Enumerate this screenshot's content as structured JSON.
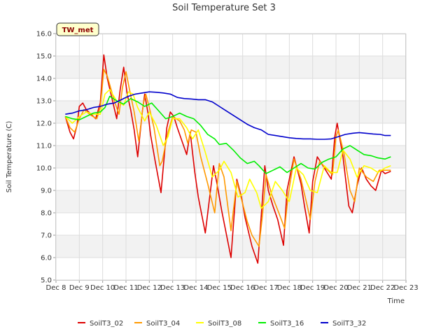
{
  "chart_data": {
    "type": "line",
    "title": "Soil Temperature Set 3",
    "xlabel": "Time",
    "ylabel": "Soil Temperature (C)",
    "badge": "TW_met",
    "xlim": [
      8,
      23
    ],
    "ylim": [
      5.0,
      16.0
    ],
    "x_ticks": [
      "Dec 8",
      "Dec 9",
      "Dec 10",
      "Dec 11",
      "Dec 12",
      "Dec 13",
      "Dec 14",
      "Dec 15",
      "Dec 16",
      "Dec 17",
      "Dec 18",
      "Dec 19",
      "Dec 20",
      "Dec 21",
      "Dec 22",
      "Dec 23"
    ],
    "y_ticks": [
      "5.0",
      "6.0",
      "7.0",
      "8.0",
      "9.0",
      "10.0",
      "11.0",
      "12.0",
      "13.0",
      "14.0",
      "15.0",
      "16.0"
    ],
    "legend_position": "bottom",
    "grid": true,
    "series": [
      {
        "name": "SoilT3_02",
        "color": "#dd0000",
        "x": [
          8.4,
          8.6,
          8.75,
          8.9,
          9.0,
          9.15,
          9.3,
          9.5,
          9.7,
          9.9,
          10.05,
          10.2,
          10.4,
          10.6,
          10.75,
          10.9,
          11.05,
          11.2,
          11.35,
          11.5,
          11.7,
          11.8,
          11.95,
          12.05,
          12.25,
          12.5,
          12.75,
          12.9,
          13.05,
          13.2,
          13.4,
          13.6,
          13.75,
          13.95,
          14.1,
          14.4,
          14.75,
          14.9,
          15.1,
          15.5,
          15.75,
          15.95,
          16.1,
          16.4,
          16.65,
          16.75,
          16.95,
          17.1,
          17.3,
          17.5,
          17.75,
          17.9,
          18.2,
          18.5,
          18.65,
          18.85,
          19.0,
          19.2,
          19.5,
          19.8,
          19.95,
          20.05,
          20.3,
          20.55,
          20.7,
          20.9,
          21.1,
          21.3,
          21.5,
          21.7,
          21.95,
          22.1,
          22.35
        ],
        "values": [
          12.3,
          11.6,
          11.3,
          11.9,
          12.75,
          12.9,
          12.6,
          12.4,
          12.2,
          12.9,
          15.05,
          14.0,
          13.1,
          12.2,
          13.5,
          14.5,
          13.3,
          12.6,
          11.7,
          10.5,
          12.5,
          13.3,
          12.4,
          11.5,
          10.3,
          8.9,
          11.8,
          12.5,
          12.3,
          11.8,
          11.2,
          10.6,
          11.6,
          9.8,
          8.7,
          7.1,
          10.1,
          9.3,
          8.1,
          6.0,
          9.5,
          8.7,
          7.8,
          6.5,
          5.75,
          7.2,
          10.1,
          9.0,
          8.3,
          7.7,
          6.55,
          9.0,
          10.5,
          9.3,
          8.3,
          7.1,
          9.4,
          10.5,
          10.0,
          9.5,
          11.4,
          12.0,
          10.5,
          8.3,
          8.0,
          9.2,
          10.0,
          9.5,
          9.2,
          9.0,
          9.9,
          9.75,
          9.85
        ]
      },
      {
        "name": "SoilT3_04",
        "color": "#ff9900",
        "x": [
          8.4,
          8.6,
          8.8,
          9.0,
          9.2,
          9.5,
          9.75,
          9.9,
          10.05,
          10.2,
          10.5,
          10.7,
          10.85,
          11.0,
          11.15,
          11.35,
          11.55,
          11.75,
          11.85,
          12.0,
          12.2,
          12.45,
          12.55,
          12.8,
          13.0,
          13.3,
          13.5,
          13.65,
          13.8,
          14.0,
          14.2,
          14.5,
          14.8,
          15.0,
          15.2,
          15.5,
          15.75,
          16.0,
          16.2,
          16.4,
          16.7,
          16.85,
          17.0,
          17.25,
          17.55,
          17.8,
          17.95,
          18.2,
          18.5,
          18.75,
          18.9,
          19.1,
          19.3,
          19.55,
          19.85,
          20.0,
          20.1,
          20.35,
          20.6,
          20.8,
          21.0,
          21.3,
          21.6,
          21.85,
          22.1,
          22.35
        ],
        "values": [
          12.3,
          11.8,
          11.6,
          12.2,
          12.6,
          12.35,
          12.2,
          12.7,
          14.4,
          14.1,
          13.0,
          12.4,
          13.6,
          14.3,
          13.5,
          12.5,
          11.2,
          12.9,
          13.3,
          12.7,
          11.8,
          10.1,
          10.3,
          11.6,
          12.3,
          12.1,
          11.7,
          11.1,
          11.7,
          11.6,
          10.5,
          9.3,
          8.0,
          10.2,
          9.6,
          7.2,
          9.4,
          8.4,
          7.6,
          7.0,
          6.5,
          7.9,
          9.7,
          8.8,
          8.0,
          7.3,
          8.8,
          10.4,
          9.5,
          8.4,
          7.7,
          9.4,
          10.3,
          10.0,
          9.7,
          11.4,
          11.7,
          10.6,
          9.0,
          8.5,
          10.0,
          9.6,
          9.4,
          9.9,
          9.9,
          9.9
        ]
      },
      {
        "name": "SoilT3_08",
        "color": "#ffff00",
        "x": [
          8.4,
          8.7,
          9.0,
          9.3,
          9.6,
          9.9,
          10.1,
          10.3,
          10.6,
          10.9,
          11.1,
          11.3,
          11.5,
          11.8,
          12.0,
          12.3,
          12.6,
          12.8,
          13.0,
          13.3,
          13.6,
          13.85,
          14.1,
          14.4,
          14.7,
          15.0,
          15.2,
          15.5,
          15.8,
          16.1,
          16.3,
          16.6,
          16.8,
          17.1,
          17.4,
          17.7,
          18.0,
          18.3,
          18.6,
          18.9,
          19.2,
          19.5,
          19.8,
          20.05,
          20.3,
          20.6,
          20.9,
          21.2,
          21.5,
          21.8,
          22.1,
          22.35
        ],
        "values": [
          12.3,
          12.0,
          12.3,
          12.5,
          12.4,
          12.4,
          13.3,
          13.5,
          13.0,
          12.8,
          13.4,
          13.3,
          12.7,
          12.1,
          12.5,
          11.9,
          11.0,
          11.4,
          12.2,
          12.2,
          11.8,
          11.3,
          11.7,
          10.7,
          9.6,
          9.9,
          10.3,
          9.8,
          8.7,
          8.9,
          9.5,
          8.9,
          8.2,
          8.5,
          9.4,
          9.0,
          8.5,
          10.0,
          9.7,
          9.0,
          8.9,
          10.1,
          9.8,
          9.8,
          10.8,
          10.4,
          9.6,
          10.1,
          10.0,
          9.8,
          10.0,
          10.1
        ]
      },
      {
        "name": "SoilT3_16",
        "color": "#00ee00",
        "x": [
          8.4,
          8.7,
          9.0,
          9.3,
          9.6,
          9.9,
          10.1,
          10.3,
          10.6,
          10.9,
          11.2,
          11.5,
          11.8,
          12.1,
          12.4,
          12.7,
          13.0,
          13.3,
          13.6,
          13.9,
          14.2,
          14.5,
          14.8,
          15.0,
          15.3,
          15.6,
          15.9,
          16.2,
          16.5,
          16.7,
          17.0,
          17.3,
          17.6,
          17.9,
          18.2,
          18.5,
          18.8,
          19.1,
          19.4,
          19.7,
          20.0,
          20.3,
          20.6,
          20.9,
          21.2,
          21.5,
          21.8,
          22.1,
          22.35
        ],
        "values": [
          12.3,
          12.2,
          12.15,
          12.3,
          12.45,
          12.5,
          12.7,
          13.2,
          13.0,
          12.85,
          13.1,
          12.95,
          12.75,
          12.9,
          12.55,
          12.2,
          12.3,
          12.45,
          12.3,
          12.2,
          11.9,
          11.5,
          11.3,
          11.05,
          11.1,
          10.8,
          10.45,
          10.2,
          10.3,
          10.1,
          9.75,
          9.9,
          10.05,
          9.8,
          10.0,
          10.2,
          10.0,
          9.95,
          10.25,
          10.4,
          10.5,
          10.85,
          11.0,
          10.8,
          10.6,
          10.55,
          10.45,
          10.4,
          10.5
        ]
      },
      {
        "name": "SoilT3_32",
        "color": "#0000cc",
        "x": [
          8.4,
          8.7,
          9.0,
          9.3,
          9.6,
          9.9,
          10.2,
          10.5,
          10.8,
          11.1,
          11.4,
          11.7,
          12.0,
          12.3,
          12.6,
          12.9,
          13.2,
          13.5,
          13.8,
          14.1,
          14.4,
          14.7,
          15.0,
          15.3,
          15.6,
          15.9,
          16.2,
          16.5,
          16.8,
          17.1,
          17.4,
          17.7,
          18.0,
          18.3,
          18.6,
          18.9,
          19.2,
          19.5,
          19.8,
          20.1,
          20.4,
          20.7,
          21.0,
          21.3,
          21.6,
          21.9,
          22.1,
          22.35
        ],
        "values": [
          12.4,
          12.45,
          12.55,
          12.6,
          12.7,
          12.75,
          12.85,
          12.9,
          13.05,
          13.2,
          13.3,
          13.35,
          13.4,
          13.38,
          13.35,
          13.3,
          13.15,
          13.1,
          13.08,
          13.05,
          13.05,
          12.95,
          12.75,
          12.55,
          12.35,
          12.15,
          11.95,
          11.8,
          11.7,
          11.5,
          11.45,
          11.4,
          11.35,
          11.32,
          11.3,
          11.3,
          11.28,
          11.28,
          11.3,
          11.4,
          11.5,
          11.55,
          11.58,
          11.55,
          11.52,
          11.5,
          11.45,
          11.45
        ]
      }
    ]
  }
}
